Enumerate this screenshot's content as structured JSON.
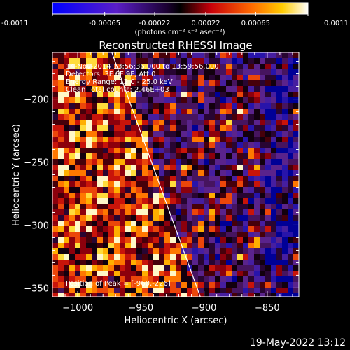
{
  "colorbar": {
    "min": -0.0011,
    "max": 0.0011,
    "ticks": [
      "-0.0011",
      "-0.00065",
      "-0.00022",
      "0.00022",
      "0.00065",
      "0.0011"
    ],
    "units_label": "(photons cm⁻² s⁻¹ asec⁻²)"
  },
  "chart_data": {
    "type": "heatmap",
    "title": "Reconstructed RHESSI Image",
    "xlabel": "Heliocentric X (arcsec)",
    "ylabel": "Heliocentric Y (arcsec)",
    "xlim": [
      -1020,
      -825
    ],
    "ylim": [
      -357,
      -163
    ],
    "x_ticks": [
      -1000,
      -950,
      -900,
      -850
    ],
    "y_ticks": [
      -200,
      -250,
      -300,
      -350
    ],
    "x_tick_labels": [
      "−1000",
      "−950",
      "−900",
      "−850"
    ],
    "y_tick_labels": [
      "−200",
      "−250",
      "−300",
      "−350"
    ],
    "grid": false,
    "limb_line": [
      [
        -973,
        -163
      ],
      [
        -903,
        -357
      ]
    ],
    "peak": [
      -960,
      -226
    ],
    "annotations": [
      "14-Nov-2014 13:56:36.000 to 13:59:56.000",
      "Detectors: 3F 6F 9F, Att 0",
      "Energy Range: 12.0 - 25.0 keV",
      "Clean    Total counts: 2.46E+03",
      "Position of Peak = [-960,-226]"
    ]
  },
  "timestamp": "19-May-2022 13:12"
}
